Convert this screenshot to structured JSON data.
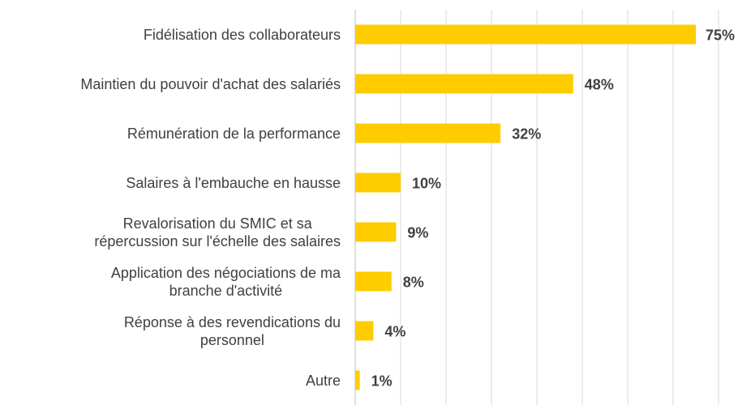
{
  "chart_data": {
    "type": "barh",
    "categories": [
      "Fidélisation des collaborateurs",
      "Maintien du pouvoir d'achat des salariés",
      "Rémunération de la performance",
      "Salaires à l'embauche en hausse",
      "Revalorisation du SMIC et sa\nrépercussion sur l'échelle des salaires",
      "Application des négociations de ma\nbranche d'activité",
      "Réponse à des revendications du\npersonnel",
      "Autre"
    ],
    "values": [
      75,
      48,
      32,
      10,
      9,
      8,
      4,
      1
    ],
    "value_labels": [
      "75%",
      "48%",
      "32%",
      "10%",
      "9%",
      "8%",
      "4%",
      "1%"
    ],
    "color": "#ffcc00",
    "xlim": [
      0,
      80
    ],
    "xticks": [
      0,
      10,
      20,
      30,
      40,
      50,
      60,
      70,
      80
    ],
    "grid": true
  }
}
